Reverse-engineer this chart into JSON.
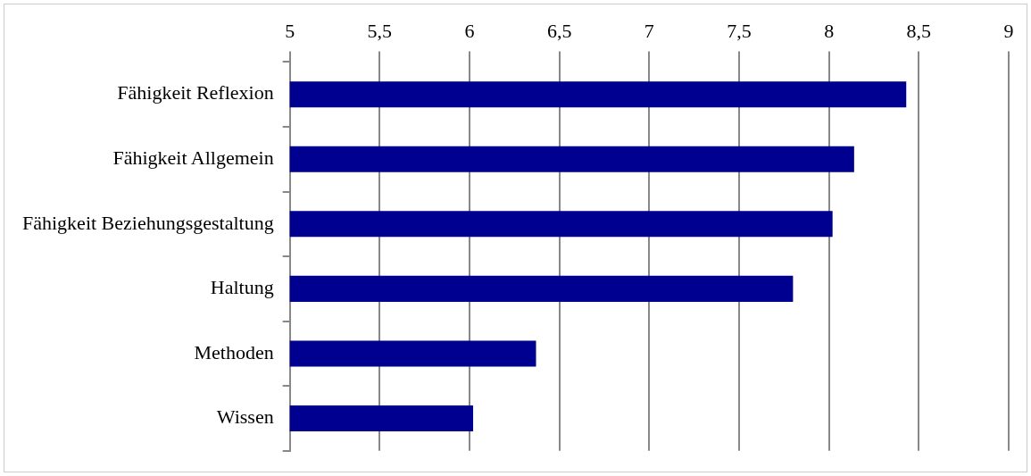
{
  "chart_data": {
    "type": "bar",
    "orientation": "horizontal",
    "categories": [
      "Fähigkeit Reflexion",
      "Fähigkeit Allgemein",
      "Fähigkeit Beziehungsgestaltung",
      "Haltung",
      "Methoden",
      "Wissen"
    ],
    "values": [
      8.43,
      8.14,
      8.02,
      7.8,
      6.37,
      6.02
    ],
    "color": "#000090",
    "xlim": [
      5,
      9
    ],
    "xticks": [
      5,
      {
        "value": 5.5,
        "label": "5,5"
      },
      6,
      {
        "value": 6.5,
        "label": "6,5"
      },
      7,
      {
        "value": 7.5,
        "label": "7,5"
      },
      8,
      {
        "value": 8.5,
        "label": "8,5"
      },
      9
    ],
    "grid": "x",
    "legend": false
  }
}
